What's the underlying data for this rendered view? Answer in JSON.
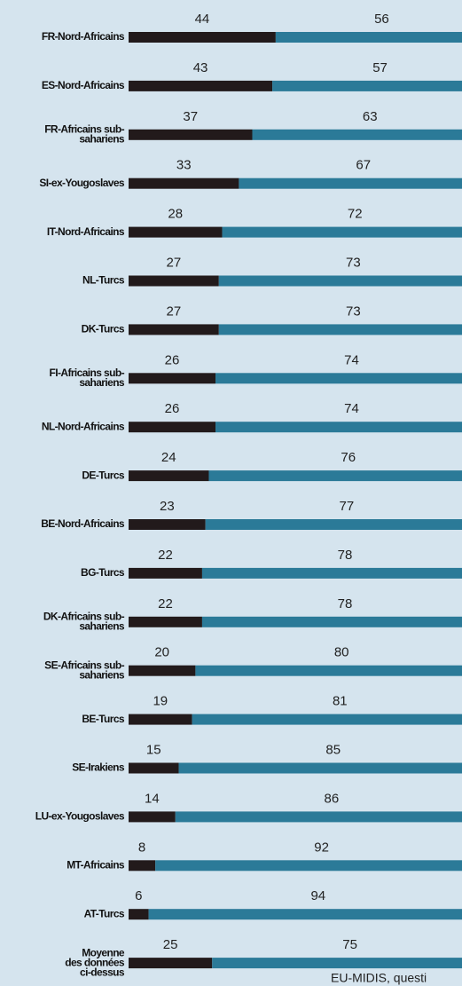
{
  "chart_data": {
    "type": "stacked-bar-horizontal",
    "categories": [
      [
        "FR-Nord-Africains"
      ],
      [
        "ES-Nord-Africains"
      ],
      [
        "FR-Africains sub-",
        "sahariens"
      ],
      [
        "SI-ex-Yougoslaves"
      ],
      [
        "IT-Nord-Africains"
      ],
      [
        "NL-Turcs"
      ],
      [
        "DK-Turcs"
      ],
      [
        "FI-Africains sub-",
        "sahariens"
      ],
      [
        "NL-Nord-Africains"
      ],
      [
        "DE-Turcs"
      ],
      [
        "BE-Nord-Africains"
      ],
      [
        "BG-Turcs"
      ],
      [
        "DK-Africains sub-",
        "sahariens"
      ],
      [
        "SE-Africains sub-",
        "sahariens"
      ],
      [
        "BE-Turcs"
      ],
      [
        "SE-Irakiens"
      ],
      [
        "LU-ex-Yougoslaves"
      ],
      [
        "MT-Africains"
      ],
      [
        "AT-Turcs"
      ],
      [
        "Moyenne",
        "des données",
        "ci-dessus"
      ]
    ],
    "series": [
      {
        "color": "#221a1b",
        "values": [
          44,
          43,
          37,
          33,
          28,
          27,
          27,
          26,
          26,
          24,
          23,
          22,
          22,
          20,
          19,
          15,
          14,
          8,
          6,
          25
        ]
      },
      {
        "color": "#2b7a98",
        "values": [
          56,
          57,
          63,
          67,
          72,
          73,
          73,
          74,
          74,
          76,
          77,
          78,
          78,
          80,
          81,
          85,
          86,
          92,
          94,
          75
        ]
      }
    ],
    "xlim": [
      0,
      100
    ],
    "source": "EU-MIDIS, questi"
  }
}
